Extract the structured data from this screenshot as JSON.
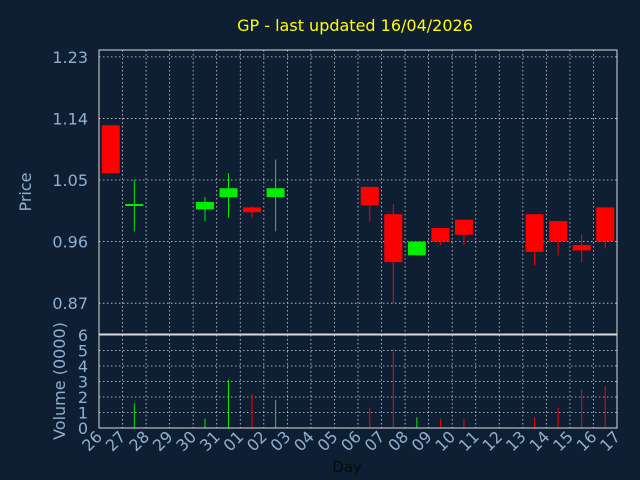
{
  "chart_data": {
    "type": "candlestick",
    "title": "GP - last updated 16/04/2026",
    "xlabel": "Day",
    "colors": {
      "up": "#00ee00",
      "down": "#ff0000",
      "background": "#0f1f33",
      "title": "#ffff00",
      "axis_text": "#8fb0d0",
      "grid": "#d8d8d8"
    },
    "x_ticks": [
      "26",
      "27",
      "28",
      "29",
      "30",
      "31",
      "01",
      "02",
      "03",
      "04",
      "05",
      "06",
      "07",
      "08",
      "09",
      "10",
      "11",
      "12",
      "13",
      "14",
      "15",
      "16",
      "17"
    ],
    "price": {
      "ylabel": "Price",
      "ylim": [
        0.825,
        1.24
      ],
      "y_ticks": [
        "0.87",
        "0.96",
        "1.05",
        "1.14",
        "1.23"
      ],
      "y_tick_values": [
        0.87,
        0.96,
        1.05,
        1.14,
        1.23
      ]
    },
    "volume": {
      "ylabel": "Volume (0000)",
      "ylim": [
        0,
        6
      ],
      "y_ticks": [
        "0",
        "1",
        "2",
        "3",
        "4",
        "5",
        "6"
      ],
      "y_tick_values": [
        0,
        1,
        2,
        3,
        4,
        5,
        6
      ]
    },
    "candles": [
      {
        "day": "26",
        "open": 1.13,
        "high": 1.13,
        "low": 1.06,
        "close": 1.06,
        "volume": 0
      },
      {
        "day": "27",
        "open": 1.015,
        "high": 1.05,
        "low": 0.975,
        "close": 1.015,
        "volume": 1.6
      },
      {
        "day": "30",
        "open": 1.007,
        "high": 1.025,
        "low": 0.99,
        "close": 1.018,
        "volume": 0.6
      },
      {
        "day": "31",
        "open": 1.025,
        "high": 1.06,
        "low": 0.995,
        "close": 1.038,
        "volume": 3.1
      },
      {
        "day": "01",
        "open": 1.01,
        "high": 1.012,
        "low": 0.995,
        "close": 1.003,
        "volume": 2.2
      },
      {
        "day": "02",
        "open": 1.025,
        "high": 1.08,
        "low": 0.975,
        "close": 1.038,
        "volume": 1.8
      },
      {
        "day": "06",
        "open": 1.04,
        "high": 1.04,
        "low": 0.99,
        "close": 1.013,
        "volume": 1.3
      },
      {
        "day": "07",
        "open": 1.0,
        "high": 1.015,
        "low": 0.87,
        "close": 0.93,
        "volume": 5.1
      },
      {
        "day": "08",
        "open": 0.94,
        "high": 0.96,
        "low": 0.94,
        "close": 0.96,
        "volume": 0.7
      },
      {
        "day": "09",
        "open": 0.98,
        "high": 0.98,
        "low": 0.955,
        "close": 0.96,
        "volume": 0.6
      },
      {
        "day": "10",
        "open": 0.992,
        "high": 0.992,
        "low": 0.955,
        "close": 0.97,
        "volume": 0.6
      },
      {
        "day": "13",
        "open": 1.0,
        "high": 1.0,
        "low": 0.925,
        "close": 0.945,
        "volume": 0.7
      },
      {
        "day": "14",
        "open": 0.99,
        "high": 0.99,
        "low": 0.94,
        "close": 0.96,
        "volume": 1.3
      },
      {
        "day": "15",
        "open": 0.955,
        "high": 0.97,
        "low": 0.93,
        "close": 0.947,
        "volume": 2.5
      },
      {
        "day": "16",
        "open": 1.01,
        "high": 1.01,
        "low": 0.95,
        "close": 0.96,
        "volume": 2.7
      }
    ]
  }
}
